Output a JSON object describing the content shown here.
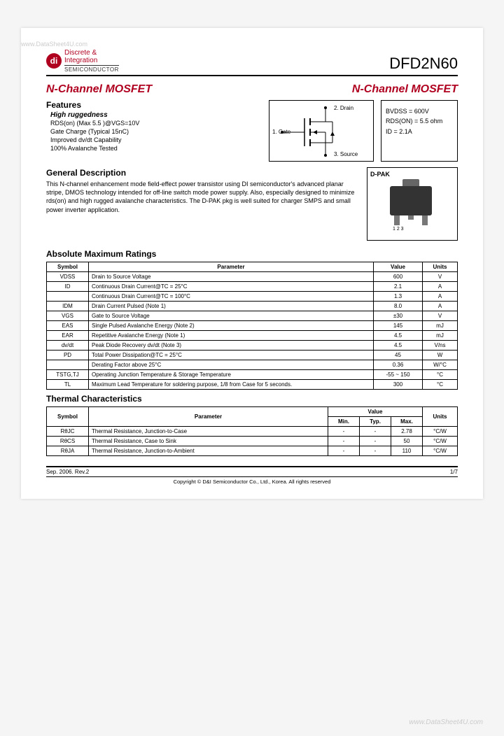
{
  "watermark_top": "www.DataSheet4U.com",
  "watermark_bottom": "www.DataSheet4U.com",
  "logo": {
    "mark": "di",
    "line1": "Discrete &",
    "line2": "Integration",
    "sub": "SEMICONDUCTOR"
  },
  "part_number": "DFD2N60",
  "title_left": "N-Channel MOSFET",
  "title_right": "N-Channel MOSFET",
  "features": {
    "heading": "Features",
    "sub": "High ruggedness",
    "items": [
      "RDS(on) (Max 5.5  )@VGS=10V",
      "Gate Charge (Typical 15nC)",
      "Improved dv/dt Capability",
      "100% Avalanche Tested"
    ]
  },
  "schematic": {
    "drain": "2. Drain",
    "gate": "1. Gate",
    "source": "3. Source"
  },
  "specbox": {
    "bvdss": "BVDSS = 600V",
    "rdson": "RDS(ON) = 5.5 ohm",
    "id": "ID = 2.1A"
  },
  "gd": {
    "heading": "General Description",
    "text": "This  N-channel enhancement mode field-effect power transistor using DI semiconductor's  advanced planar stripe, DMOS technology intended for off-line switch mode power supply. Also, especially designed to minimize rds(on) and high rugged avalanche characteristics.  The D-PAK pkg is  well suited  for charger SMPS and small power inverter application."
  },
  "pkg": {
    "label": "D-PAK",
    "pins": "1  2  3"
  },
  "abs_max": {
    "heading": "Absolute Maximum Ratings",
    "cols": [
      "Symbol",
      "Parameter",
      "Value",
      "Units"
    ],
    "rows": [
      [
        "VDSS",
        "Drain to Source Voltage",
        "600",
        "V"
      ],
      [
        "ID",
        "Continuous Drain Current@TC = 25°C",
        "2.1",
        "A"
      ],
      [
        "",
        "Continuous Drain Current@TC = 100°C",
        "1.3",
        "A"
      ],
      [
        "IDM",
        "Drain Current Pulsed                                       (Note 1)",
        "8.0",
        "A"
      ],
      [
        "VGS",
        "Gate to Source Voltage",
        "±30",
        "V"
      ],
      [
        "EAS",
        "Single Pulsed Avalanche Energy                       (Note 2)",
        "145",
        "mJ"
      ],
      [
        "EAR",
        "Repetitive Avalanche Energy                            (Note 1)",
        "4.5",
        "mJ"
      ],
      [
        "dv/dt",
        "Peak Diode Recovery dv/dt                               (Note 3)",
        "4.5",
        "V/ns"
      ],
      [
        "PD",
        "Total Power Dissipation@TC = 25°C",
        "45",
        "W"
      ],
      [
        "",
        "Derating Factor above 25°C",
        "0.36",
        "W/°C"
      ],
      [
        "TSTG,TJ",
        "Operating Junction Temperature & Storage Temperature",
        "-55 ~ 150",
        "°C"
      ],
      [
        "TL",
        "Maximum Lead Temperature for soldering purpose, 1/8 from Case for 5 seconds.",
        "300",
        "°C"
      ]
    ]
  },
  "thermal": {
    "heading": "Thermal Characteristics",
    "cols_top": [
      "Symbol",
      "Parameter",
      "Value",
      "Units"
    ],
    "cols_val": [
      "Min.",
      "Typ.",
      "Max."
    ],
    "rows": [
      [
        "RθJC",
        "Thermal Resistance, Junction-to-Case",
        "-",
        "-",
        "2.78",
        "°C/W"
      ],
      [
        "RθCS",
        "Thermal Resistance, Case to Sink",
        "-",
        "-",
        "50",
        "°C/W"
      ],
      [
        "RθJA",
        "Thermal Resistance, Junction-to-Ambient",
        "-",
        "-",
        "110",
        "°C/W"
      ]
    ]
  },
  "footer": {
    "date": "Sep. 2006. Rev.2",
    "page": "1/7",
    "copyright": "Copyright © D&I Semiconductor Co., Ltd., Korea. All rights reserved"
  }
}
